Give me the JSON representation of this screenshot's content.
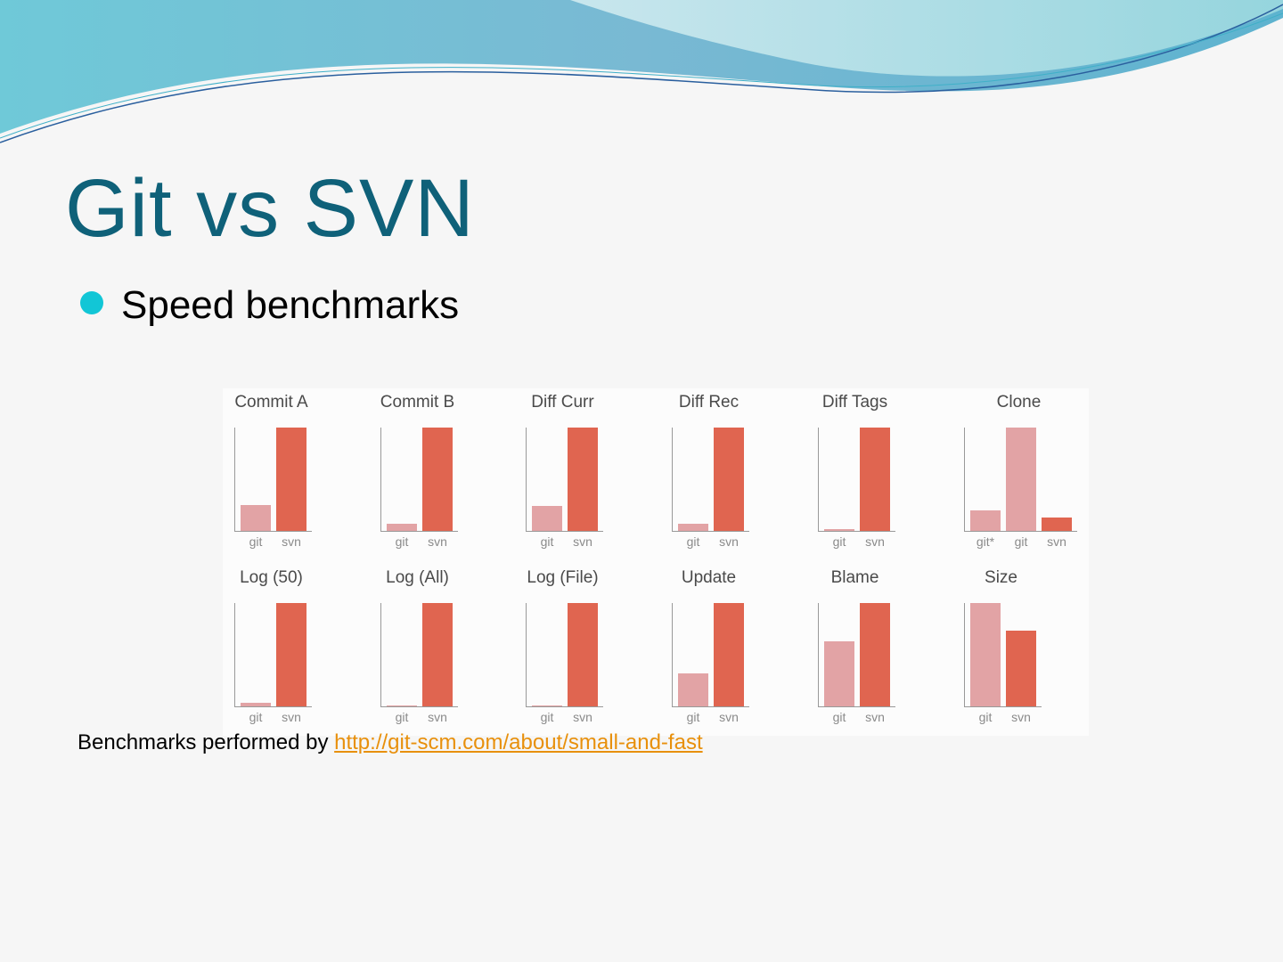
{
  "slide": {
    "title": "Git vs SVN",
    "bullet": "Speed benchmarks",
    "footer_text": "Benchmarks performed by ",
    "footer_link": "http://git-scm.com/about/small-and-fast"
  },
  "colors": {
    "title": "#0f6179",
    "bullet": "#12c6d6",
    "git": "#e2a3a5",
    "svn": "#e06550",
    "link": "#e8900c"
  },
  "chart_data": [
    {
      "type": "bar",
      "title": "Commit A",
      "categories": [
        "git",
        "svn"
      ],
      "values": [
        0.25,
        1.0
      ],
      "ylim": [
        0,
        1
      ]
    },
    {
      "type": "bar",
      "title": "Commit B",
      "categories": [
        "git",
        "svn"
      ],
      "values": [
        0.066,
        1.0
      ],
      "ylim": [
        0,
        1
      ]
    },
    {
      "type": "bar",
      "title": "Diff Curr",
      "categories": [
        "git",
        "svn"
      ],
      "values": [
        0.24,
        1.0
      ],
      "ylim": [
        0,
        1
      ]
    },
    {
      "type": "bar",
      "title": "Diff Rec",
      "categories": [
        "git",
        "svn"
      ],
      "values": [
        0.066,
        1.0
      ],
      "ylim": [
        0,
        1
      ]
    },
    {
      "type": "bar",
      "title": "Diff Tags",
      "categories": [
        "git",
        "svn"
      ],
      "values": [
        0.017,
        1.0
      ],
      "ylim": [
        0,
        1
      ]
    },
    {
      "type": "bar",
      "title": "Clone",
      "categories": [
        "git*",
        "git",
        "svn"
      ],
      "values": [
        0.2,
        1.0,
        0.13
      ],
      "ylim": [
        0,
        1
      ]
    },
    {
      "type": "bar",
      "title": "Log (50)",
      "categories": [
        "git",
        "svn"
      ],
      "values": [
        0.035,
        1.0
      ],
      "ylim": [
        0,
        1
      ]
    },
    {
      "type": "bar",
      "title": "Log (All)",
      "categories": [
        "git",
        "svn"
      ],
      "values": [
        0.005,
        1.0
      ],
      "ylim": [
        0,
        1
      ]
    },
    {
      "type": "bar",
      "title": "Log (File)",
      "categories": [
        "git",
        "svn"
      ],
      "values": [
        0.008,
        1.0
      ],
      "ylim": [
        0,
        1
      ]
    },
    {
      "type": "bar",
      "title": "Update",
      "categories": [
        "git",
        "svn"
      ],
      "values": [
        0.32,
        1.0
      ],
      "ylim": [
        0,
        1
      ]
    },
    {
      "type": "bar",
      "title": "Blame",
      "categories": [
        "git",
        "svn"
      ],
      "values": [
        0.63,
        1.0
      ],
      "ylim": [
        0,
        1
      ]
    },
    {
      "type": "bar",
      "title": "Size",
      "categories": [
        "git",
        "svn"
      ],
      "values": [
        1.0,
        0.73
      ],
      "ylim": [
        0,
        1
      ]
    }
  ]
}
